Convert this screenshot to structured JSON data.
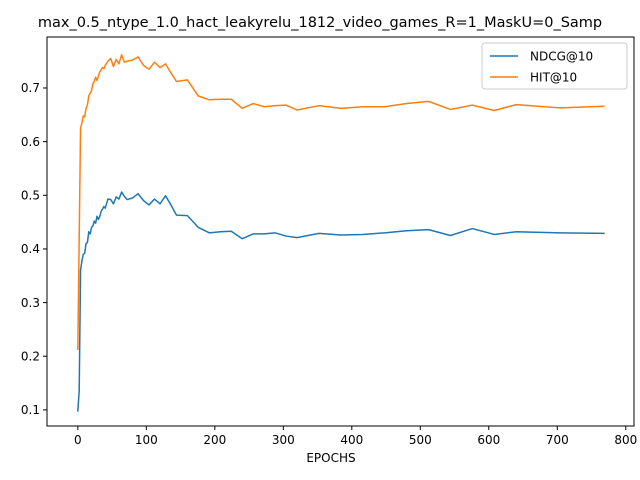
{
  "chart_data": {
    "type": "line",
    "title": "max_0.5_ntype_1.0_hact_leakyrelu_1812_video_games_R=1_MaskU=0_Samp",
    "xlabel": "EPOCHS",
    "ylabel": "",
    "xlim": [
      -45,
      812
    ],
    "ylim": [
      0.07,
      0.795
    ],
    "xticks": [
      0,
      100,
      200,
      300,
      400,
      500,
      600,
      700,
      800
    ],
    "yticks": [
      0.1,
      0.2,
      0.3,
      0.4,
      0.5,
      0.6,
      0.7
    ],
    "grid": false,
    "legend_position": "top-right",
    "series": [
      {
        "name": "NDCG@10",
        "color": "#1f77b4",
        "x": [
          0,
          2,
          4,
          6,
          8,
          10,
          12,
          14,
          16,
          18,
          20,
          22,
          24,
          26,
          28,
          30,
          32,
          34,
          36,
          38,
          40,
          44,
          48,
          52,
          56,
          60,
          64,
          68,
          72,
          80,
          88,
          96,
          104,
          112,
          120,
          128,
          136,
          144,
          160,
          176,
          192,
          208,
          224,
          240,
          256,
          272,
          288,
          304,
          320,
          352,
          384,
          416,
          448,
          480,
          512,
          544,
          576,
          608,
          640,
          704,
          768
        ],
        "y": [
          0.098,
          0.135,
          0.36,
          0.378,
          0.39,
          0.392,
          0.41,
          0.412,
          0.432,
          0.428,
          0.44,
          0.443,
          0.452,
          0.448,
          0.461,
          0.455,
          0.46,
          0.47,
          0.474,
          0.479,
          0.476,
          0.493,
          0.492,
          0.484,
          0.497,
          0.493,
          0.506,
          0.498,
          0.492,
          0.495,
          0.503,
          0.49,
          0.482,
          0.493,
          0.484,
          0.499,
          0.482,
          0.463,
          0.462,
          0.44,
          0.43,
          0.432,
          0.433,
          0.419,
          0.428,
          0.428,
          0.43,
          0.424,
          0.421,
          0.429,
          0.426,
          0.427,
          0.43,
          0.434,
          0.436,
          0.425,
          0.438,
          0.427,
          0.432,
          0.43,
          0.429
        ]
      },
      {
        "name": "HIT@10",
        "color": "#ff7f0e",
        "x": [
          0,
          2,
          4,
          6,
          8,
          10,
          12,
          14,
          16,
          18,
          20,
          22,
          24,
          26,
          28,
          30,
          32,
          34,
          36,
          38,
          40,
          44,
          48,
          52,
          56,
          60,
          64,
          68,
          72,
          80,
          88,
          96,
          104,
          112,
          120,
          128,
          136,
          144,
          160,
          176,
          192,
          208,
          224,
          240,
          256,
          272,
          288,
          304,
          320,
          352,
          384,
          416,
          448,
          480,
          512,
          544,
          576,
          608,
          640,
          704,
          768
        ],
        "y": [
          0.213,
          0.42,
          0.625,
          0.635,
          0.648,
          0.646,
          0.662,
          0.668,
          0.685,
          0.69,
          0.695,
          0.708,
          0.712,
          0.72,
          0.714,
          0.722,
          0.73,
          0.734,
          0.738,
          0.736,
          0.742,
          0.75,
          0.755,
          0.74,
          0.753,
          0.745,
          0.762,
          0.748,
          0.75,
          0.752,
          0.758,
          0.742,
          0.735,
          0.748,
          0.738,
          0.745,
          0.728,
          0.712,
          0.715,
          0.685,
          0.678,
          0.679,
          0.679,
          0.662,
          0.671,
          0.665,
          0.667,
          0.668,
          0.659,
          0.667,
          0.662,
          0.665,
          0.665,
          0.671,
          0.675,
          0.66,
          0.668,
          0.658,
          0.669,
          0.663,
          0.666
        ]
      }
    ]
  }
}
